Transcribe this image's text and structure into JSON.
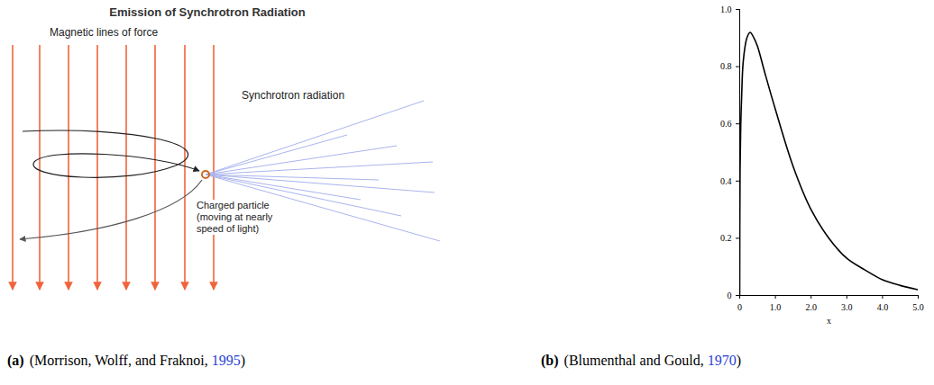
{
  "diagram": {
    "title": "Emission of Synchrotron Radiation",
    "field_label": "Magnetic lines of force",
    "radiation_label": "Synchrotron radiation",
    "particle_label": [
      "Charged particle",
      "(moving at nearly",
      "speed of light)"
    ]
  },
  "captions": {
    "a": {
      "letter": "(a)",
      "cite_before": "(Morrison, Wolff, and Fraknoi, ",
      "year": "1995",
      "cite_after": ")"
    },
    "b": {
      "letter": "(b)",
      "cite_before": "(Blumenthal and Gould, ",
      "year": "1970",
      "cite_after": ")"
    }
  },
  "chart_data": {
    "type": "line",
    "x_label": "x",
    "color": "#000000",
    "x": [
      0,
      0.01,
      0.03,
      0.05,
      0.1,
      0.2,
      0.29,
      0.4,
      0.5,
      0.7,
      1.0,
      1.5,
      2.0,
      2.5,
      3.0,
      3.5,
      4.0,
      4.5,
      5.0
    ],
    "values": [
      0,
      0.44,
      0.6,
      0.68,
      0.82,
      0.9,
      0.92,
      0.9,
      0.87,
      0.78,
      0.65,
      0.45,
      0.3,
      0.2,
      0.13,
      0.09,
      0.055,
      0.035,
      0.02
    ],
    "xlim": [
      0,
      5
    ],
    "ylim": [
      0,
      1
    ],
    "xticks": [
      0,
      {
        "value": 1,
        "label": "1.0"
      },
      {
        "value": 2,
        "label": "2.0"
      },
      {
        "value": 3,
        "label": "3.0"
      },
      {
        "value": 4,
        "label": "4.0"
      },
      {
        "value": 5,
        "label": "5.0"
      }
    ],
    "yticks": [
      0,
      0.2,
      0.4,
      0.6,
      0.8,
      {
        "value": 1,
        "label": "1.0"
      }
    ]
  }
}
